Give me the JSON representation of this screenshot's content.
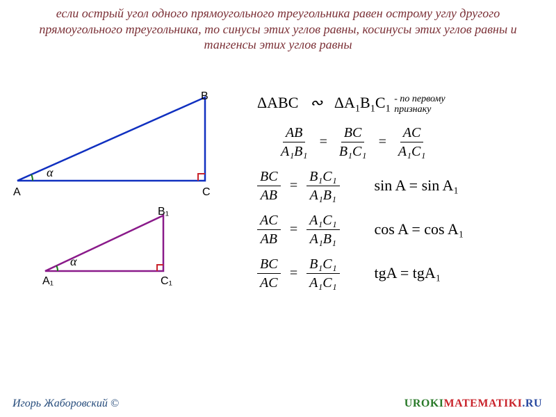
{
  "theorem": "если острый угол одного прямоугольного треугольника равен острому углу другого прямоугольного треугольника, то синусы этих углов равны, косинусы этих углов равны и тангенсы этих углов равны",
  "similarity": {
    "left": "ΔABC",
    "tilde": "∾",
    "right_plain": "ΔA",
    "right_sub": "1",
    "right_b": "B",
    "right_c": "C",
    "note": "- по первому\nпризнаку"
  },
  "ratio3": {
    "n1": "AB",
    "d1": "A₁B₁",
    "n2": "BC",
    "d2": "B₁C₁",
    "n3": "AC",
    "d3": "A₁C₁"
  },
  "row_sin": {
    "n1": "BC",
    "d1": "AB",
    "n2": "B₁C₁",
    "d2": "A₁B₁",
    "res": "sin A = sin A₁"
  },
  "row_cos": {
    "n1": "AC",
    "d1": "AB",
    "n2": "A₁C₁",
    "d2": "A₁B₁",
    "res": "cos A = cos A₁"
  },
  "row_tg": {
    "n1": "BC",
    "d1": "AC",
    "n2": "B₁C₁",
    "d2": "A₁C₁",
    "res": "tgA = tgA₁"
  },
  "labels": {
    "A": "A",
    "B": "B",
    "C": "C",
    "A1": "A₁",
    "B1": "B₁",
    "C1": "C₁",
    "alpha": "α"
  },
  "footer": {
    "author": "Игорь Жаборовский ©",
    "site_g": "UROKI",
    "site_r": "MATEMATIKI",
    "site_b": ".RU"
  },
  "triangle1": {
    "stroke": "#1030c0",
    "A": [
      10,
      130
    ],
    "B": [
      280,
      10
    ],
    "C": [
      280,
      130
    ],
    "angle_r": 22,
    "right_sq": 10
  },
  "triangle2": {
    "stroke": "#8a1a8a",
    "A": [
      10,
      90
    ],
    "B": [
      180,
      10
    ],
    "C": [
      180,
      90
    ],
    "angle_r": 18,
    "right_sq": 9
  }
}
